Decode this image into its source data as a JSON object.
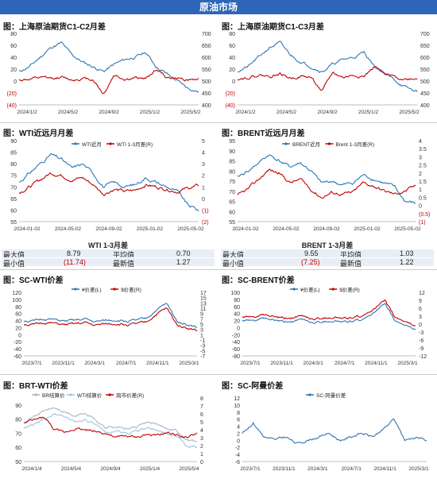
{
  "banner": "原油市场",
  "charts": [
    {
      "id": "c1",
      "title": "图：上海原油期货C1-C2月差",
      "yleft": {
        "min": -40,
        "max": 80,
        "ticks": [
          80,
          60,
          40,
          20,
          0,
          -20,
          -40
        ],
        "labels": [
          "80",
          "60",
          "40",
          "20",
          "0",
          "(20)",
          "(40)"
        ]
      },
      "yright": {
        "min": 400,
        "max": 700,
        "ticks": [
          700,
          650,
          600,
          550,
          500,
          450,
          400
        ],
        "labels": [
          "700",
          "650",
          "600",
          "550",
          "500",
          "450",
          "400"
        ]
      },
      "xlabels": [
        "2024/1/2",
        "2024/5/2",
        "2024/9/2",
        "2025/1/2",
        "2025/5/2"
      ],
      "series": [
        {
          "color": "#2e75b6",
          "axis": "right",
          "seed": 11,
          "shape": [
            540,
            560,
            600,
            640,
            660,
            610,
            580,
            560,
            540,
            570,
            590,
            600,
            620,
            560,
            530,
            500,
            470,
            455
          ]
        },
        {
          "color": "#c00000",
          "axis": "left",
          "seed": 12,
          "shape": [
            2,
            3,
            5,
            4,
            6,
            2,
            4,
            3,
            -22,
            10,
            3,
            5,
            4,
            20,
            6,
            4,
            2,
            3
          ]
        }
      ]
    },
    {
      "id": "c2",
      "title": "图：上海原油期货C1-C3月差",
      "yleft": {
        "min": -40,
        "max": 80,
        "ticks": [
          80,
          60,
          40,
          20,
          0,
          -20,
          -40
        ],
        "labels": [
          "80",
          "60",
          "40",
          "20",
          "0",
          "(20)",
          "(40)"
        ]
      },
      "yright": {
        "min": 400,
        "max": 700,
        "ticks": [
          700,
          650,
          600,
          550,
          500,
          450,
          400
        ],
        "labels": [
          "700",
          "650",
          "600",
          "550",
          "500",
          "450",
          "400"
        ]
      },
      "xlabels": [
        "2024/1/2",
        "2024/5/2",
        "2024/9/2",
        "2025/1/2",
        "2025/5/2"
      ],
      "series": [
        {
          "color": "#2e75b6",
          "axis": "right",
          "seed": 21,
          "shape": [
            540,
            560,
            600,
            640,
            660,
            610,
            580,
            560,
            540,
            570,
            590,
            600,
            620,
            560,
            530,
            500,
            470,
            455
          ]
        },
        {
          "color": "#c00000",
          "axis": "left",
          "seed": 22,
          "shape": [
            4,
            6,
            10,
            8,
            12,
            5,
            8,
            6,
            -18,
            14,
            6,
            10,
            8,
            25,
            10,
            6,
            3,
            5
          ]
        }
      ]
    },
    {
      "id": "c3",
      "title": "图：WTI近远月月差",
      "yleft": {
        "min": 55,
        "max": 90,
        "ticks": [
          90,
          85,
          80,
          75,
          70,
          65,
          60,
          55
        ],
        "labels": [
          "90",
          "85",
          "80",
          "75",
          "70",
          "65",
          "60",
          "55"
        ]
      },
      "yright": {
        "min": -2,
        "max": 5,
        "ticks": [
          5,
          4,
          3,
          2,
          1,
          0,
          -1,
          -2
        ],
        "labels": [
          "5",
          "4",
          "3",
          "2",
          "1",
          "0",
          "(1)",
          "(2)"
        ]
      },
      "xlabels": [
        "2024-01-02",
        "2024-05-02",
        "2024-09-02",
        "2025-01-02",
        "2025-05-02"
      ],
      "legend": [
        "WTI近月",
        "WTI 1-3月差(R)"
      ],
      "series": [
        {
          "name": "WTI近月",
          "color": "#2e75b6",
          "axis": "left",
          "seed": 31,
          "shape": [
            72,
            76,
            80,
            84,
            82,
            78,
            80,
            76,
            70,
            72,
            70,
            71,
            74,
            72,
            70,
            68,
            62,
            60
          ]
        },
        {
          "name": "WTI 1-3月差(R)",
          "color": "#c00000",
          "axis": "right",
          "seed": 32,
          "shape": [
            0.5,
            1.0,
            1.6,
            2.2,
            2.0,
            1.6,
            1.8,
            1.2,
            0.4,
            0.8,
            0.6,
            0.7,
            1.2,
            1.0,
            0.8,
            0.6,
            0.9,
            1.1
          ]
        }
      ]
    },
    {
      "id": "c4",
      "title": "图：BRENT近远月月差",
      "yleft": {
        "min": 55,
        "max": 95,
        "ticks": [
          95,
          90,
          85,
          80,
          75,
          70,
          65,
          60,
          55
        ],
        "labels": [
          "95",
          "90",
          "85",
          "80",
          "75",
          "70",
          "65",
          "60",
          "55"
        ]
      },
      "yright": {
        "min": -1,
        "max": 4,
        "ticks": [
          4,
          3.5,
          3,
          2.5,
          2,
          1.5,
          1,
          0.5,
          0,
          -0.5,
          -1
        ],
        "labels": [
          "4",
          "3.5",
          "3",
          "2.5",
          "2",
          "1.5",
          "1",
          "0.5",
          "0",
          "(0.5)",
          "(1)"
        ]
      },
      "xlabels": [
        "2024-01-02",
        "2024-05-02",
        "2024-09-02",
        "2025-01-02",
        "2025-05-02"
      ],
      "legend": [
        "BRENT近月",
        "Brent 1-3月差(R)"
      ],
      "series": [
        {
          "name": "BRENT近月",
          "color": "#2e75b6",
          "axis": "left",
          "seed": 41,
          "shape": [
            77,
            80,
            84,
            88,
            85,
            82,
            84,
            80,
            74,
            75,
            73,
            74,
            78,
            76,
            74,
            72,
            65,
            64
          ]
        },
        {
          "name": "Brent 1-3月差(R)",
          "color": "#c00000",
          "axis": "right",
          "seed": 42,
          "shape": [
            0.6,
            1.0,
            1.6,
            2.2,
            2.0,
            1.4,
            1.6,
            1.0,
            0.5,
            0.8,
            0.7,
            0.8,
            1.4,
            1.2,
            0.9,
            0.7,
            0.9,
            1.2
          ]
        }
      ]
    },
    {
      "id": "c5",
      "title": "图：SC-WTI价差",
      "yleft": {
        "min": -60,
        "max": 120,
        "ticks": [
          120,
          100,
          80,
          60,
          40,
          20,
          0,
          -20,
          -40,
          -60
        ],
        "labels": [
          "120",
          "100",
          "80",
          "60",
          "40",
          "20",
          "0",
          "-20",
          "-40",
          "-60"
        ]
      },
      "yright": {
        "min": -7,
        "max": 17,
        "ticks": [
          17,
          15,
          13,
          11,
          9,
          7,
          5,
          3,
          1,
          -1,
          -3,
          -5,
          -7
        ],
        "labels": [
          "17",
          "15",
          "13",
          "11",
          "9",
          "7",
          "5",
          "3",
          "1",
          "-1",
          "-3",
          "-5",
          "-7"
        ]
      },
      "xlabels": [
        "2023/7/1",
        "2023/11/1",
        "2024/3/1",
        "2024/7/1",
        "2024/11/1",
        "2025/3/1"
      ],
      "legend": [
        "¥价差(L)",
        "$价差(R)"
      ],
      "series": [
        {
          "name": "¥价差(L)",
          "color": "#2e75b6",
          "axis": "left",
          "seed": 51,
          "shape": [
            40,
            38,
            45,
            42,
            38,
            40,
            44,
            36,
            40,
            42,
            38,
            40,
            45,
            70,
            88,
            40,
            30,
            20
          ]
        },
        {
          "name": "$价差(R)",
          "color": "#c00000",
          "axis": "right",
          "seed": 51,
          "shape": [
            5.0,
            4.7,
            5.6,
            5.2,
            4.7,
            5.0,
            5.5,
            4.5,
            5.0,
            5.2,
            4.7,
            5.0,
            5.6,
            8.7,
            11.0,
            5.0,
            3.7,
            2.5
          ]
        }
      ]
    },
    {
      "id": "c6",
      "title": "图：SC-BRENT价差",
      "yleft": {
        "min": -80,
        "max": 100,
        "ticks": [
          100,
          80,
          60,
          40,
          20,
          0,
          -20,
          -40,
          -60,
          -80
        ],
        "labels": [
          "100",
          "80",
          "60",
          "40",
          "20",
          "0",
          "-20",
          "-40",
          "-60",
          "-80"
        ]
      },
      "yright": {
        "min": -12,
        "max": 12,
        "ticks": [
          12,
          9,
          6,
          3,
          0,
          -3,
          -6,
          -9,
          -12
        ],
        "labels": [
          "12",
          "9",
          "6",
          "3",
          "0",
          "-3",
          "-6",
          "-9",
          "-12"
        ]
      },
      "xlabels": [
        "2023/7/1",
        "2023/11/1",
        "2024/3/1",
        "2024/7/1",
        "2024/11/1",
        "2025/3/1"
      ],
      "legend": [
        "¥价差(L)",
        "$价差(R)"
      ],
      "series": [
        {
          "name": "¥价差(L)",
          "color": "#2e75b6",
          "axis": "left",
          "seed": 61,
          "shape": [
            20,
            18,
            25,
            22,
            15,
            18,
            22,
            14,
            18,
            20,
            16,
            18,
            24,
            48,
            64,
            18,
            8,
            -5
          ]
        },
        {
          "name": "$价差(R)",
          "color": "#c00000",
          "axis": "right",
          "seed": 61,
          "shape": [
            2.7,
            2.4,
            3.3,
            2.9,
            2.0,
            2.4,
            2.9,
            1.9,
            2.4,
            2.7,
            2.1,
            2.4,
            3.2,
            6.4,
            8.5,
            2.4,
            1.1,
            -0.7
          ]
        }
      ]
    },
    {
      "id": "c7",
      "title": "图：BRT-WTI价差",
      "yleft": {
        "min": 50,
        "max": 95,
        "ticks": [
          90,
          80,
          70,
          60,
          50
        ],
        "labels": [
          "90",
          "80",
          "70",
          "60",
          "50"
        ]
      },
      "yright": {
        "min": 0,
        "max": 8,
        "ticks": [
          8,
          7,
          6,
          5,
          4,
          3,
          2,
          1,
          0
        ],
        "labels": [
          "8",
          "7",
          "6",
          "5",
          "4",
          "3",
          "2",
          "1",
          "0"
        ]
      },
      "xlabels": [
        "2024/1/4",
        "2024/5/4",
        "2024/9/4",
        "2025/1/4",
        "2025/5/4"
      ],
      "legend": [
        "BR结算价",
        "WTI结算价",
        "跨市价差(R)"
      ],
      "series": [
        {
          "name": "BR结算价",
          "color": "#a6b6cc",
          "axis": "left",
          "seed": 71,
          "shape": [
            78,
            82,
            86,
            88,
            85,
            82,
            84,
            80,
            74,
            75,
            73,
            74,
            78,
            76,
            74,
            72,
            65,
            64
          ]
        },
        {
          "name": "WTI结算价",
          "color": "#9dc3e6",
          "axis": "left",
          "seed": 72,
          "shape": [
            73,
            76,
            80,
            84,
            82,
            78,
            80,
            76,
            70,
            72,
            70,
            71,
            74,
            72,
            70,
            68,
            61,
            60
          ]
        },
        {
          "name": "跨市价差(R)",
          "color": "#c00000",
          "axis": "right",
          "seed": 73,
          "shape": [
            4.8,
            5.2,
            5.6,
            4.0,
            3.6,
            4.2,
            4.0,
            3.8,
            3.6,
            3.0,
            3.2,
            3.0,
            3.4,
            3.2,
            3.6,
            3.4,
            3.0,
            3.6
          ]
        }
      ]
    },
    {
      "id": "c8",
      "title": "图：SC-阿曼价差",
      "yleft": {
        "min": -6,
        "max": 12,
        "ticks": [
          12,
          10,
          8,
          6,
          4,
          2,
          0,
          -2,
          -4,
          -6
        ],
        "labels": [
          "12",
          "10",
          "8",
          "6",
          "4",
          "2",
          "0",
          "-2",
          "-4",
          "-6"
        ]
      },
      "xlabels": [
        "2023/7/1",
        "2023/11/1",
        "2024/3/1",
        "2024/7/1",
        "2024/11/1",
        "2025/3/1"
      ],
      "legend": [
        "SC-阿曼价差"
      ],
      "series": [
        {
          "name": "SC-阿曼价差",
          "color": "#2e75b6",
          "axis": "left",
          "seed": 81,
          "shape": [
            2,
            5,
            1,
            0,
            1,
            -1,
            0,
            1,
            2,
            0,
            1,
            2,
            1,
            3,
            6,
            0,
            1,
            0
          ]
        }
      ]
    }
  ],
  "stats": [
    {
      "title": "WTI 1-3月差",
      "rows": [
        [
          "最大值",
          "8.79",
          "平均值",
          "0.70"
        ],
        [
          "最小值",
          "(11.74)",
          "最新值",
          "1.27"
        ]
      ]
    },
    {
      "title": "BRENT 1-3月差",
      "rows": [
        [
          "最大值",
          "9.55",
          "平均值",
          "1.03"
        ],
        [
          "最小值",
          "(7.25)",
          "最新值",
          "1.22"
        ]
      ]
    }
  ]
}
